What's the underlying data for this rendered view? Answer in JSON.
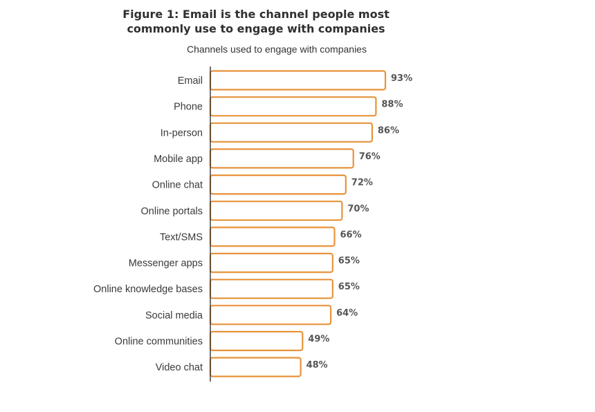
{
  "chart_data": {
    "type": "bar",
    "orientation": "horizontal",
    "title": "Figure 1: Email is the channel people most\ncommonly use to engage with companies",
    "subtitle": "Channels used to engage with companies",
    "categories": [
      "Email",
      "Phone",
      "In-person",
      "Mobile app",
      "Online chat",
      "Online portals",
      "Text/SMS",
      "Messenger apps",
      "Online knowledge bases",
      "Social media",
      "Online communities",
      "Video chat"
    ],
    "values": [
      93,
      88,
      86,
      76,
      72,
      70,
      66,
      65,
      65,
      64,
      49,
      48
    ],
    "value_labels": [
      "93%",
      "88%",
      "86%",
      "76%",
      "72%",
      "70%",
      "66%",
      "65%",
      "65%",
      "64%",
      "49%",
      "48%"
    ],
    "xlim": [
      0,
      100
    ],
    "grid": false,
    "legend": "none",
    "colors": {
      "bar_stroke": "#e8923a",
      "bar_fill": "#ffffff",
      "axis": "#222222"
    }
  }
}
